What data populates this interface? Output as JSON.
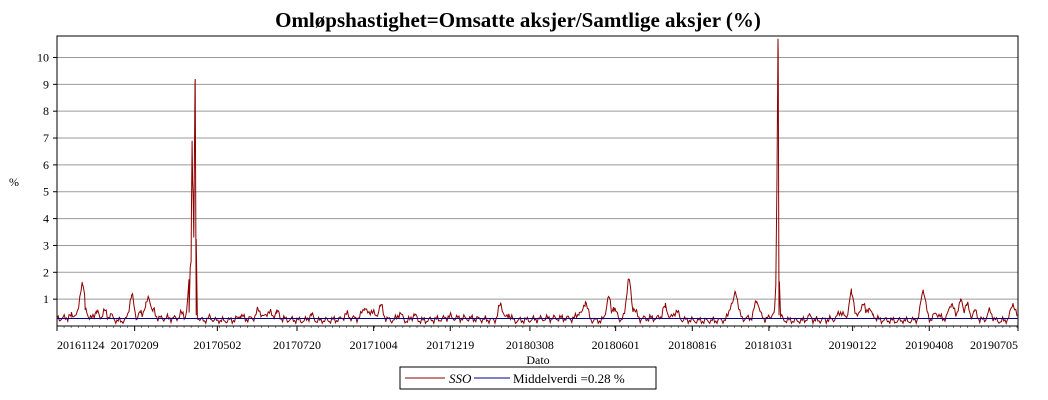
{
  "chart_data": {
    "type": "line",
    "title": "Omløpshastighet=Omsatte aksjer/Samtlige aksjer (%)",
    "xlabel": "Dato",
    "ylabel": "%",
    "ylim": [
      0,
      10.8
    ],
    "yticks": [
      1,
      2,
      3,
      4,
      5,
      6,
      7,
      8,
      9,
      10
    ],
    "grid": true,
    "legend_position": "bottom-center",
    "x_start": "20161124",
    "x_end": "20190705",
    "x_tick_labels": [
      "20161124",
      "20170209",
      "20170502",
      "20170720",
      "20171004",
      "20171219",
      "20180308",
      "20180601",
      "20180816",
      "20181031",
      "20190122",
      "20190408",
      "20190705"
    ],
    "series": [
      {
        "name": "SSO",
        "color": "#8b0000",
        "baseline": 0.24,
        "points": [
          [
            "20161208",
            0.35
          ],
          [
            "20161212",
            0.4
          ],
          [
            "20161219",
            1.6
          ],
          [
            "20161222",
            0.6
          ],
          [
            "20170102",
            0.55
          ],
          [
            "20170110",
            0.6
          ],
          [
            "20170116",
            0.45
          ],
          [
            "20170206",
            1.15
          ],
          [
            "20170215",
            0.5
          ],
          [
            "20170220",
            0.75
          ],
          [
            "20170223",
            1.05
          ],
          [
            "20170227",
            0.55
          ],
          [
            "20170328",
            0.45
          ],
          [
            "20170404",
            0.5
          ],
          [
            "20170406",
            2.4
          ],
          [
            "20170407",
            6.9
          ],
          [
            "20170408",
            4.9
          ],
          [
            "20170410",
            9.2
          ],
          [
            "20170411",
            0.4
          ],
          [
            "20170425",
            0.35
          ],
          [
            "20170525",
            0.38
          ],
          [
            "20170612",
            0.55
          ],
          [
            "20170622",
            0.5
          ],
          [
            "20170630",
            0.5
          ],
          [
            "20170803",
            0.45
          ],
          [
            "20170907",
            0.42
          ],
          [
            "20170925",
            0.65
          ],
          [
            "20171002",
            0.55
          ],
          [
            "20171011",
            0.75
          ],
          [
            "20171030",
            0.5
          ],
          [
            "20171113",
            0.45
          ],
          [
            "20171218",
            0.32
          ],
          [
            "20180207",
            0.85
          ],
          [
            "20180215",
            0.45
          ],
          [
            "20180426",
            0.5
          ],
          [
            "20180502",
            0.9
          ],
          [
            "20180525",
            1.1
          ],
          [
            "20180530",
            0.7
          ],
          [
            "20180601",
            0.55
          ],
          [
            "20180614",
            1.75
          ],
          [
            "20180619",
            0.65
          ],
          [
            "20180720",
            0.7
          ],
          [
            "20180731",
            0.55
          ],
          [
            "20180924",
            0.85
          ],
          [
            "20180928",
            1.25
          ],
          [
            "20181019",
            0.9
          ],
          [
            "20181105",
            0.5
          ],
          [
            "20181108",
            5.6
          ],
          [
            "20181109",
            10.7
          ],
          [
            "20181110",
            0.4
          ],
          [
            "20181210",
            0.42
          ],
          [
            "20190110",
            0.5
          ],
          [
            "20190121",
            1.2
          ],
          [
            "20190201",
            0.8
          ],
          [
            "20190207",
            0.65
          ],
          [
            "20190211",
            0.4
          ],
          [
            "20190402",
            1.35
          ],
          [
            "20190415",
            0.45
          ],
          [
            "20190430",
            0.8
          ],
          [
            "20190509",
            0.92
          ],
          [
            "20190515",
            0.8
          ],
          [
            "20190523",
            0.55
          ],
          [
            "20190607",
            0.6
          ],
          [
            "20190630",
            0.85
          ]
        ]
      },
      {
        "name": "Middelverdi =0.28 %",
        "color": "#00008b",
        "value": 0.28
      }
    ]
  }
}
